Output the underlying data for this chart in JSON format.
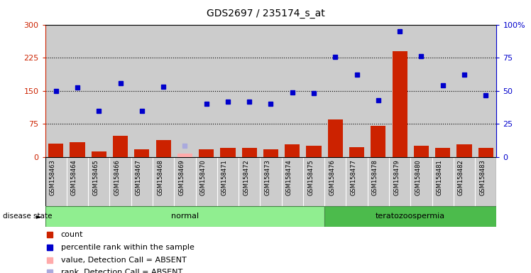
{
  "title": "GDS2697 / 235174_s_at",
  "samples": [
    "GSM158463",
    "GSM158464",
    "GSM158465",
    "GSM158466",
    "GSM158467",
    "GSM158468",
    "GSM158469",
    "GSM158470",
    "GSM158471",
    "GSM158472",
    "GSM158473",
    "GSM158474",
    "GSM158475",
    "GSM158476",
    "GSM158477",
    "GSM158478",
    "GSM158479",
    "GSM158480",
    "GSM158481",
    "GSM158482",
    "GSM158483"
  ],
  "count_values": [
    30,
    33,
    13,
    48,
    18,
    38,
    8,
    18,
    20,
    20,
    17,
    28,
    26,
    85,
    22,
    70,
    240,
    25,
    20,
    28,
    20
  ],
  "rank_values": [
    149,
    158,
    105,
    168,
    105,
    159,
    25,
    120,
    125,
    125,
    120,
    147,
    145,
    226,
    186,
    129,
    285,
    228,
    163,
    187,
    140
  ],
  "absent_value_indices": [
    6
  ],
  "absent_rank_indices": [
    6
  ],
  "disease_groups": [
    {
      "label": "normal",
      "start": 0,
      "end": 13,
      "color": "#90ee90"
    },
    {
      "label": "teratozoospermia",
      "start": 13,
      "end": 21,
      "color": "#4cbb4c"
    }
  ],
  "left_ylim": [
    0,
    300
  ],
  "right_ylim": [
    0,
    100
  ],
  "left_yticks": [
    0,
    75,
    150,
    225,
    300
  ],
  "right_yticks": [
    0,
    25,
    50,
    75,
    100
  ],
  "right_yticklabels": [
    "0",
    "25",
    "50",
    "75",
    "100%"
  ],
  "hlines": [
    75,
    150,
    225
  ],
  "bar_color": "#cc2200",
  "absent_bar_color": "#ffaaaa",
  "dot_color": "#0000cc",
  "absent_dot_color": "#aaaadd",
  "cell_bg_color": "#cccccc",
  "plot_bg_color": "#ffffff",
  "legend_items": [
    {
      "color": "#cc2200",
      "label": "count"
    },
    {
      "color": "#0000cc",
      "label": "percentile rank within the sample"
    },
    {
      "color": "#ffaaaa",
      "label": "value, Detection Call = ABSENT"
    },
    {
      "color": "#aaaadd",
      "label": "rank, Detection Call = ABSENT"
    }
  ]
}
